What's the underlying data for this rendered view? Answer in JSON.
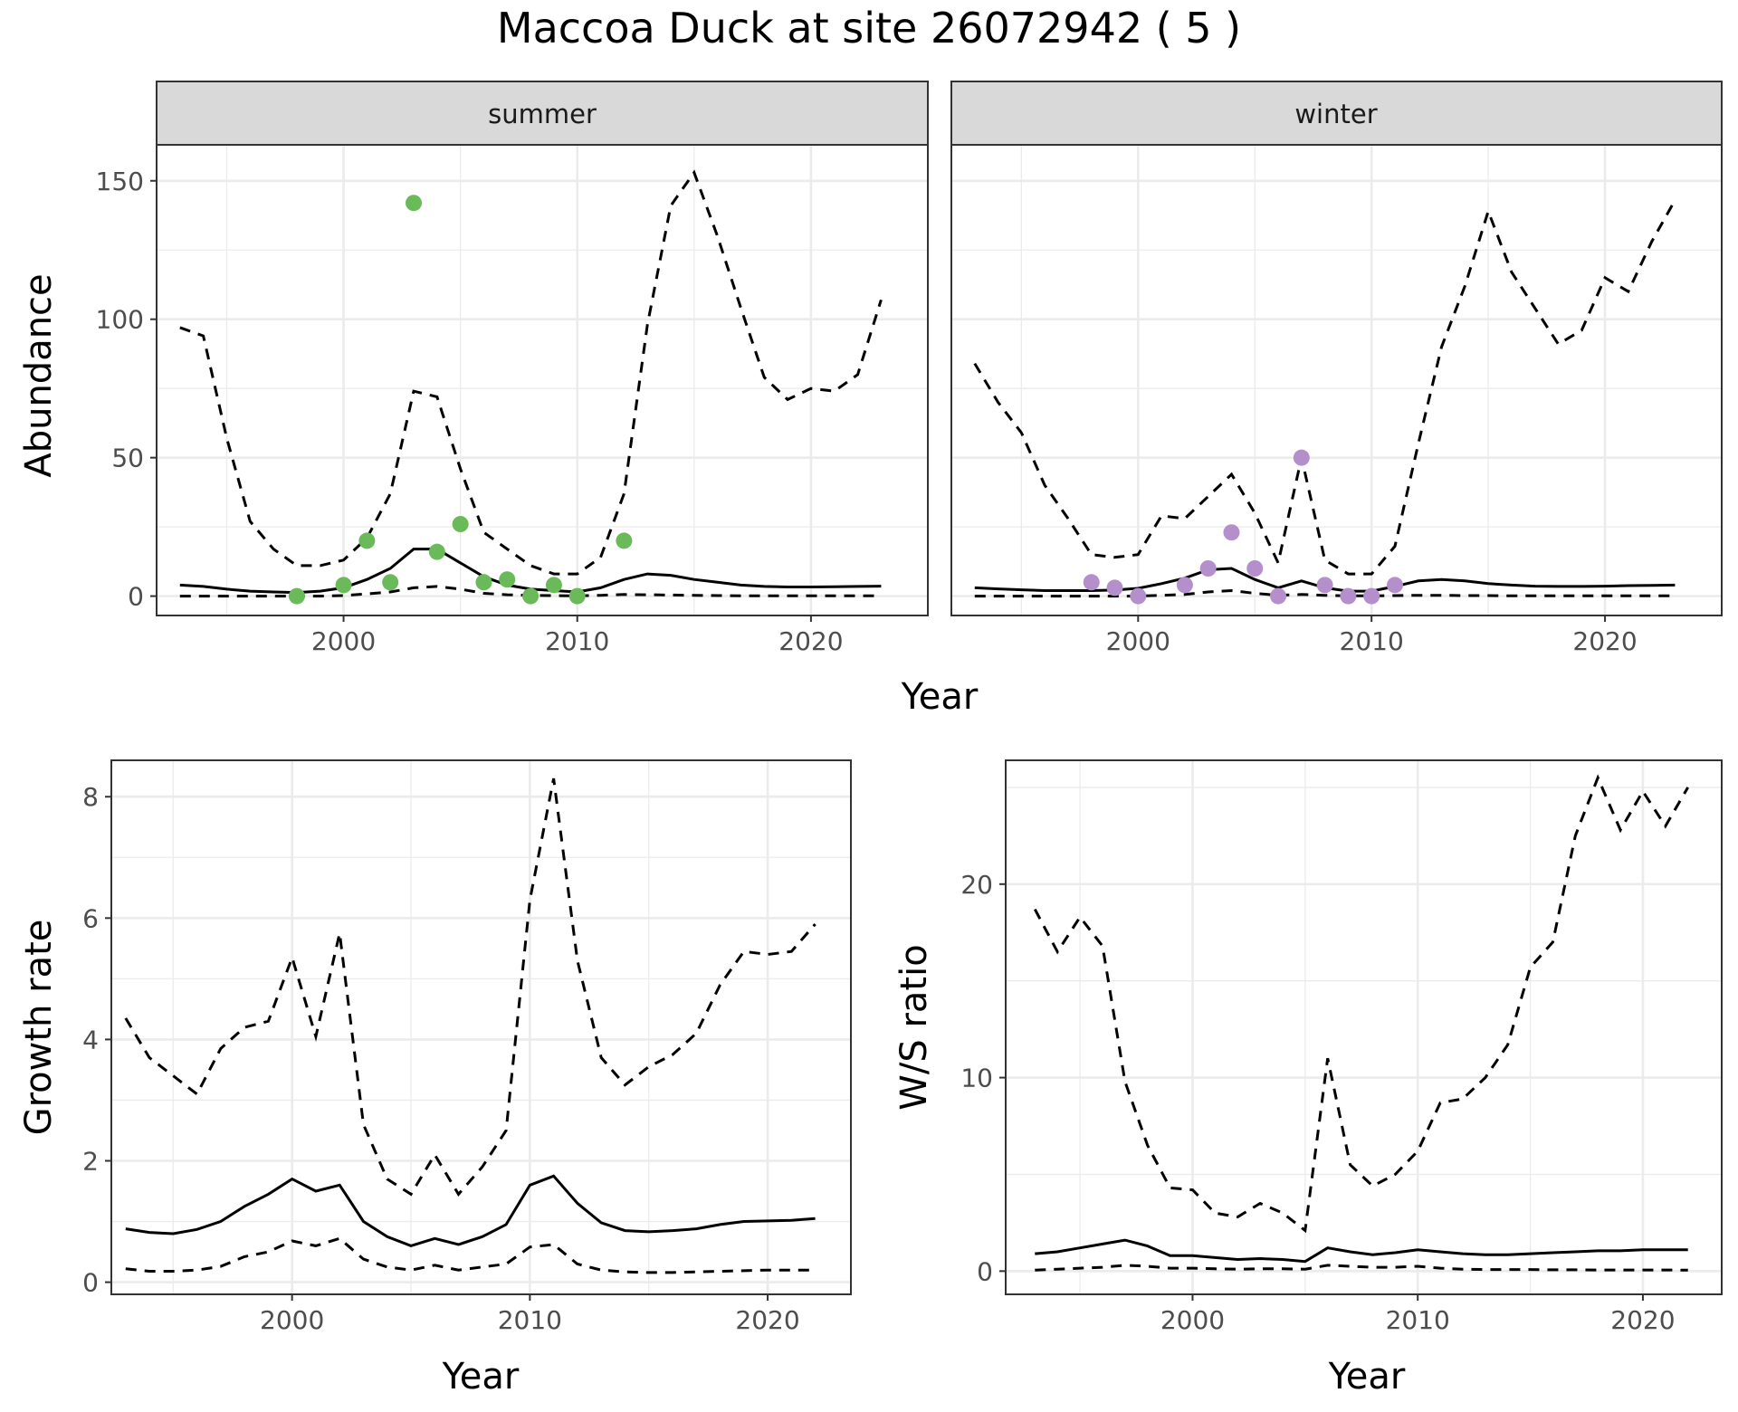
{
  "title": "Maccoa Duck at site 26072942 ( 5 )",
  "colors": {
    "summer_points": "#6ABA5A",
    "winter_points": "#B48FCB",
    "lines": "#000000",
    "strip_bg": "#D9D9D9"
  },
  "chart_data": [
    {
      "id": "abundance",
      "type": "line",
      "facets": [
        "summer",
        "winter"
      ],
      "xlabel": "Year",
      "ylabel": "Abundance",
      "xlim": [
        1992,
        2025
      ],
      "ylim": [
        -7,
        163
      ],
      "xticks": [
        2000,
        2010,
        2020
      ],
      "yticks": [
        0,
        50,
        100,
        150
      ],
      "grid": true,
      "panels": [
        {
          "facet": "summer",
          "x": [
            1993,
            1994,
            1995,
            1996,
            1997,
            1998,
            1999,
            2000,
            2001,
            2002,
            2003,
            2004,
            2005,
            2006,
            2007,
            2008,
            2009,
            2010,
            2011,
            2012,
            2013,
            2014,
            2015,
            2016,
            2017,
            2018,
            2019,
            2020,
            2021,
            2022,
            2023
          ],
          "mean": [
            4,
            3.5,
            2.5,
            1.8,
            1.5,
            1.3,
            1.8,
            3,
            6,
            10,
            17,
            17,
            12,
            7,
            4,
            2.5,
            2,
            1.5,
            3,
            6,
            8,
            7.5,
            6,
            5,
            4,
            3.5,
            3.3,
            3.3,
            3.4,
            3.5,
            3.6
          ],
          "lower": [
            0,
            0,
            0,
            0,
            0,
            0,
            0,
            0.2,
            0.8,
            1.5,
            3,
            3.5,
            2.5,
            1,
            0.5,
            0.3,
            0.2,
            0.1,
            0.3,
            0.6,
            0.5,
            0.4,
            0.3,
            0.2,
            0.1,
            0.1,
            0.1,
            0.1,
            0.1,
            0.1,
            0.1
          ],
          "upper": [
            97,
            94,
            57,
            27,
            17,
            11,
            11,
            13,
            21,
            37,
            74,
            72,
            46,
            23,
            17,
            11,
            8,
            8,
            14,
            37,
            98,
            141,
            153,
            130,
            104,
            79,
            71,
            75,
            74,
            80,
            107
          ],
          "observed": [
            {
              "x": 1998,
              "y": 0
            },
            {
              "x": 2000,
              "y": 4
            },
            {
              "x": 2001,
              "y": 20
            },
            {
              "x": 2002,
              "y": 5
            },
            {
              "x": 2003,
              "y": 142
            },
            {
              "x": 2004,
              "y": 16
            },
            {
              "x": 2005,
              "y": 26
            },
            {
              "x": 2006,
              "y": 5
            },
            {
              "x": 2007,
              "y": 6
            },
            {
              "x": 2008,
              "y": 0
            },
            {
              "x": 2009,
              "y": 4
            },
            {
              "x": 2010,
              "y": 0
            },
            {
              "x": 2012,
              "y": 20
            }
          ]
        },
        {
          "facet": "winter",
          "x": [
            1993,
            1994,
            1995,
            1996,
            1997,
            1998,
            1999,
            2000,
            2001,
            2002,
            2003,
            2004,
            2005,
            2006,
            2007,
            2008,
            2009,
            2010,
            2011,
            2012,
            2013,
            2014,
            2015,
            2016,
            2017,
            2018,
            2019,
            2020,
            2021,
            2022,
            2023
          ],
          "mean": [
            3,
            2.6,
            2.3,
            2,
            2,
            2,
            2.2,
            2.8,
            4.5,
            6.5,
            9.5,
            10,
            6,
            3,
            5.5,
            3,
            1.8,
            1.8,
            3.5,
            5.5,
            6,
            5.5,
            4.5,
            4,
            3.6,
            3.5,
            3.5,
            3.6,
            3.8,
            3.9,
            4
          ],
          "lower": [
            0,
            0,
            0,
            0,
            0,
            0,
            0,
            0,
            0.3,
            0.6,
            1.5,
            2,
            1,
            0.3,
            0.6,
            0.3,
            0.1,
            0.1,
            0.2,
            0.3,
            0.3,
            0.2,
            0.2,
            0.1,
            0.1,
            0.1,
            0.1,
            0.1,
            0.1,
            0.1,
            0.1
          ],
          "upper": [
            84,
            70,
            59,
            40,
            28,
            15,
            14,
            15,
            29,
            28,
            36,
            44,
            30,
            12,
            50,
            13,
            8,
            8,
            18,
            55,
            90,
            112,
            139,
            117,
            104,
            91,
            96,
            115,
            110,
            128,
            143
          ],
          "observed": [
            {
              "x": 1998,
              "y": 5
            },
            {
              "x": 1999,
              "y": 3
            },
            {
              "x": 2000,
              "y": 0
            },
            {
              "x": 2002,
              "y": 4
            },
            {
              "x": 2003,
              "y": 10
            },
            {
              "x": 2004,
              "y": 23
            },
            {
              "x": 2005,
              "y": 10
            },
            {
              "x": 2006,
              "y": 0
            },
            {
              "x": 2007,
              "y": 50
            },
            {
              "x": 2008,
              "y": 4
            },
            {
              "x": 2009,
              "y": 0
            },
            {
              "x": 2010,
              "y": 0
            },
            {
              "x": 2011,
              "y": 4
            }
          ]
        }
      ]
    },
    {
      "id": "growth",
      "type": "line",
      "xlabel": "Year",
      "ylabel": "Growth rate",
      "xlim": [
        1992.4,
        2023.5
      ],
      "ylim": [
        -0.2,
        8.6
      ],
      "xticks": [
        2000,
        2010,
        2020
      ],
      "yticks": [
        0,
        2,
        4,
        6,
        8
      ],
      "grid": true,
      "x": [
        1993,
        1994,
        1995,
        1996,
        1997,
        1998,
        1999,
        2000,
        2001,
        2002,
        2003,
        2004,
        2005,
        2006,
        2007,
        2008,
        2009,
        2010,
        2011,
        2012,
        2013,
        2014,
        2015,
        2016,
        2017,
        2018,
        2019,
        2020,
        2021,
        2022
      ],
      "mean": [
        0.88,
        0.82,
        0.8,
        0.87,
        1,
        1.25,
        1.45,
        1.7,
        1.5,
        1.6,
        1,
        0.75,
        0.6,
        0.72,
        0.62,
        0.75,
        0.95,
        1.6,
        1.75,
        1.3,
        0.98,
        0.85,
        0.83,
        0.85,
        0.88,
        0.95,
        1,
        1.01,
        1.02,
        1.05
      ],
      "lower": [
        0.22,
        0.18,
        0.18,
        0.2,
        0.26,
        0.42,
        0.5,
        0.68,
        0.6,
        0.72,
        0.38,
        0.25,
        0.2,
        0.28,
        0.2,
        0.25,
        0.3,
        0.58,
        0.62,
        0.3,
        0.2,
        0.17,
        0.16,
        0.16,
        0.17,
        0.18,
        0.19,
        0.2,
        0.2,
        0.2
      ],
      "upper": [
        4.35,
        3.7,
        3.4,
        3.1,
        3.85,
        4.2,
        4.3,
        5.35,
        4.05,
        5.75,
        2.6,
        1.7,
        1.45,
        2.1,
        1.45,
        1.9,
        2.5,
        6.3,
        8.3,
        5.3,
        3.7,
        3.25,
        3.55,
        3.75,
        4.1,
        4.9,
        5.45,
        5.4,
        5.45,
        5.9
      ]
    },
    {
      "id": "ws_ratio",
      "type": "line",
      "xlabel": "Year",
      "ylabel": "W/S ratio",
      "xlim": [
        1991.7,
        2023.5
      ],
      "ylim": [
        -1.2,
        26.4
      ],
      "xticks": [
        2000,
        2010,
        2020
      ],
      "yticks": [
        0,
        10,
        20
      ],
      "grid": true,
      "x": [
        1993,
        1994,
        1995,
        1996,
        1997,
        1998,
        1999,
        2000,
        2001,
        2002,
        2003,
        2004,
        2005,
        2006,
        2007,
        2008,
        2009,
        2010,
        2011,
        2012,
        2013,
        2014,
        2015,
        2016,
        2017,
        2018,
        2019,
        2020,
        2021,
        2022
      ],
      "mean": [
        0.9,
        1.0,
        1.2,
        1.4,
        1.6,
        1.3,
        0.8,
        0.8,
        0.7,
        0.6,
        0.65,
        0.6,
        0.5,
        1.2,
        1.0,
        0.85,
        0.95,
        1.1,
        1.0,
        0.9,
        0.85,
        0.85,
        0.9,
        0.95,
        1.0,
        1.05,
        1.05,
        1.1,
        1.1,
        1.1
      ],
      "lower": [
        0.05,
        0.1,
        0.15,
        0.2,
        0.3,
        0.25,
        0.15,
        0.15,
        0.12,
        0.1,
        0.12,
        0.12,
        0.1,
        0.3,
        0.25,
        0.2,
        0.2,
        0.25,
        0.15,
        0.1,
        0.08,
        0.08,
        0.08,
        0.07,
        0.07,
        0.06,
        0.06,
        0.06,
        0.06,
        0.05
      ],
      "upper": [
        18.7,
        16.5,
        18.3,
        16.8,
        9.8,
        6.5,
        4.3,
        4.2,
        3,
        2.8,
        3.5,
        3,
        2.1,
        11,
        5.5,
        4.4,
        5,
        6.2,
        8.7,
        8.9,
        10,
        11.7,
        15.7,
        17,
        22.5,
        25.5,
        22.8,
        24.8,
        23,
        25
      ]
    }
  ]
}
